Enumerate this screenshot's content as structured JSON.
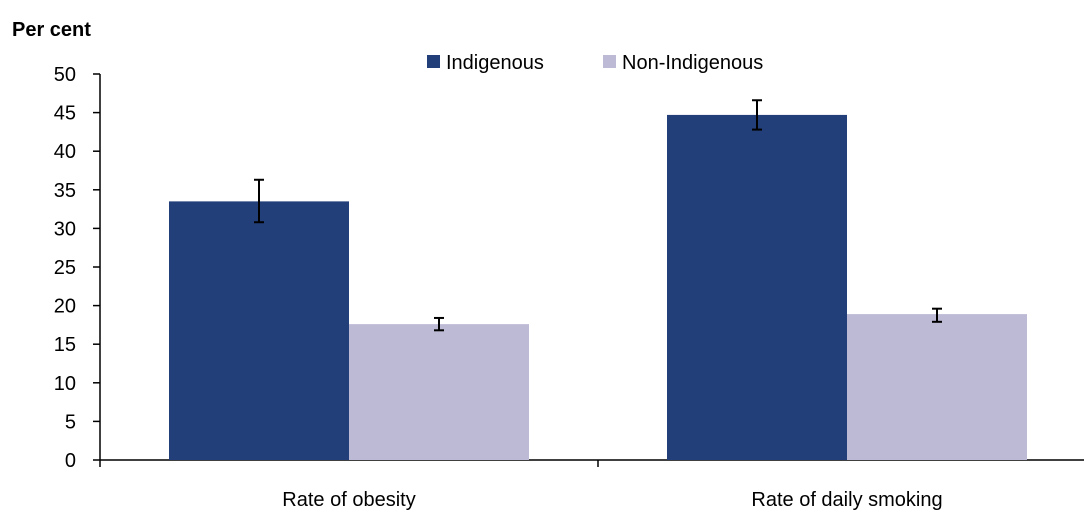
{
  "chart_data": {
    "type": "bar",
    "ylabel": "Per cent",
    "categories": [
      "Rate of obesity",
      "Rate of daily smoking"
    ],
    "series": [
      {
        "name": "Indigenous",
        "color": "#223F7A",
        "values": [
          33.5,
          44.7
        ],
        "error_low": [
          30.8,
          42.8
        ],
        "error_high": [
          36.3,
          46.6
        ]
      },
      {
        "name": "Non-Indigenous",
        "color": "#BDBAD6",
        "values": [
          17.6,
          18.9
        ],
        "error_low": [
          16.8,
          17.9
        ],
        "error_high": [
          18.4,
          19.6
        ]
      }
    ],
    "ylim": [
      0,
      50
    ],
    "yticks": [
      0,
      5,
      10,
      15,
      20,
      25,
      30,
      35,
      40,
      45,
      50
    ],
    "legend_position": "top-center",
    "grid": false
  }
}
